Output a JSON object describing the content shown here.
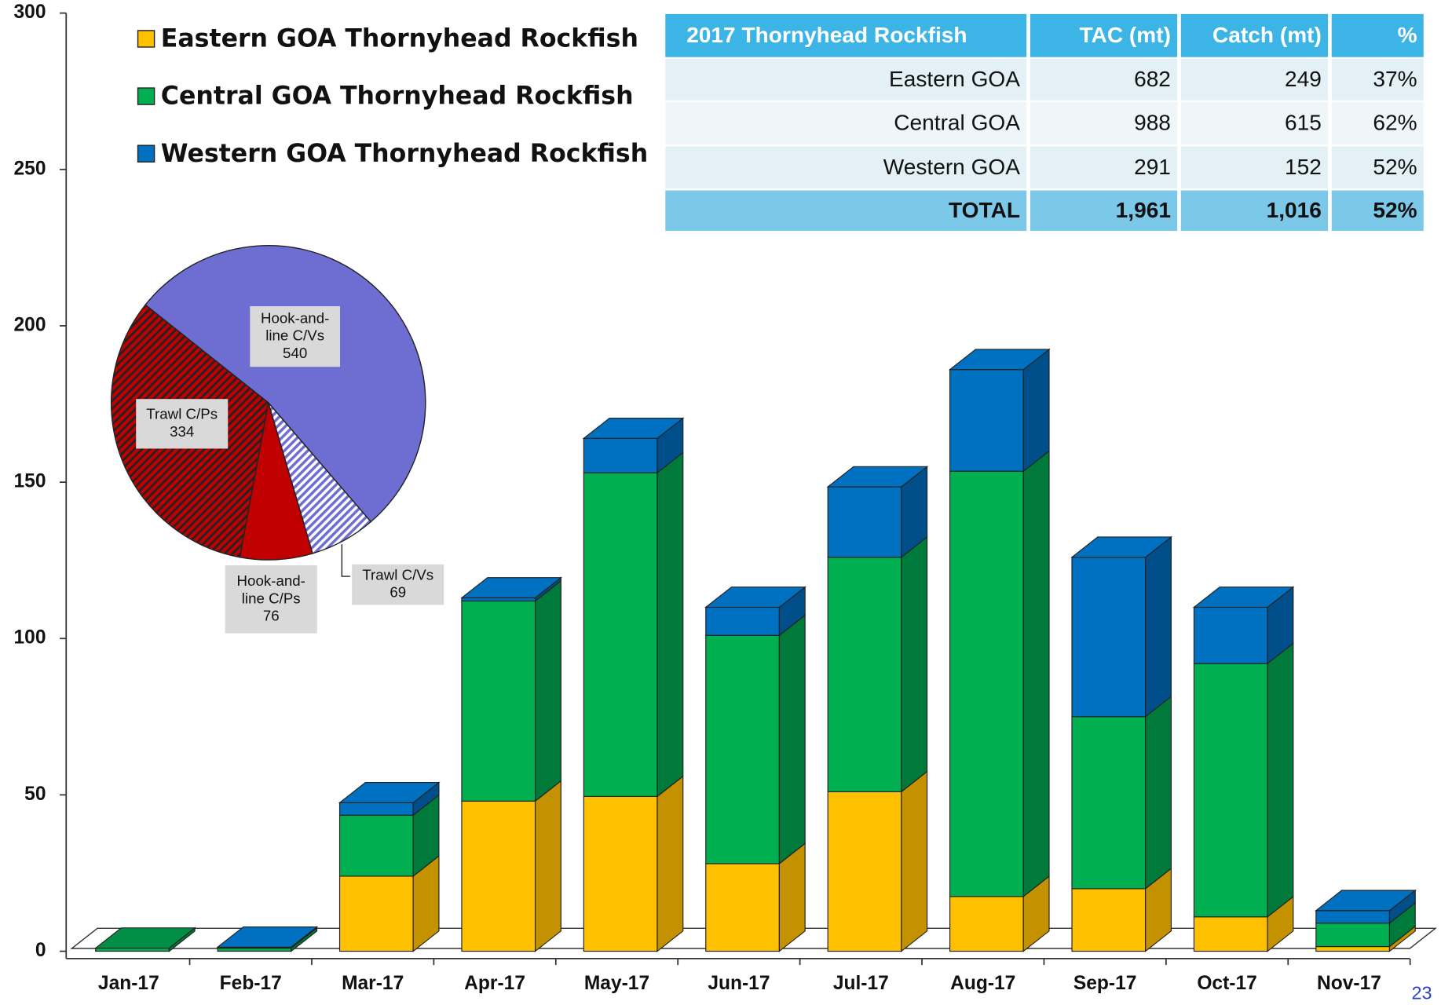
{
  "chart_data": [
    {
      "type": "bar3d_stacked",
      "categories": [
        "Jan-17",
        "Feb-17",
        "Mar-17",
        "Apr-17",
        "May-17",
        "Jun-17",
        "Jul-17",
        "Aug-17",
        "Sep-17",
        "Oct-17",
        "Nov-17"
      ],
      "series": [
        {
          "name": "Eastern GOA Thornyhead Rockfish",
          "color": "#ffc000",
          "side_color": "#c49200",
          "values": [
            0,
            0,
            24,
            48,
            49.5,
            28,
            51,
            17.5,
            20,
            11,
            1.5
          ]
        },
        {
          "name": "Central GOA Thornyhead Rockfish",
          "color": "#00b050",
          "side_color": "#007a3a",
          "values": [
            1,
            1,
            19.5,
            64,
            103.5,
            73,
            75,
            136,
            55,
            81,
            7.5
          ]
        },
        {
          "name": "Western GOA Thornyhead Rockfish",
          "color": "#0070c0",
          "side_color": "#004f8a",
          "values": [
            0,
            0.3,
            4,
            1,
            11,
            9,
            22.5,
            32.5,
            51,
            18,
            4
          ]
        }
      ],
      "ylim": [
        0,
        300
      ],
      "yticks": [
        0,
        50,
        100,
        150,
        200,
        250,
        300
      ]
    },
    {
      "type": "pie",
      "categories": [
        "Hook-and-line C/Vs",
        "Trawl C/Vs",
        "Hook-and-line C/Ps",
        "Trawl C/Ps"
      ],
      "values": [
        540,
        69,
        76,
        334
      ],
      "colors": [
        "#6e6ed2",
        "#6e6ed2",
        "#c00000",
        "#c00000"
      ],
      "hatched": [
        false,
        true,
        false,
        true
      ]
    }
  ],
  "table": {
    "header": [
      "2017 Thornyhead Rockfish",
      "TAC (mt)",
      "Catch (mt)",
      "%"
    ],
    "rows": [
      [
        "Eastern GOA",
        "682",
        "249",
        "37%"
      ],
      [
        "Central GOA",
        "988",
        "615",
        "62%"
      ],
      [
        "Western GOA",
        "291",
        "152",
        "52%"
      ]
    ],
    "total": [
      "TOTAL",
      "1,961",
      "1,016",
      "52%"
    ]
  },
  "page_number": "23"
}
